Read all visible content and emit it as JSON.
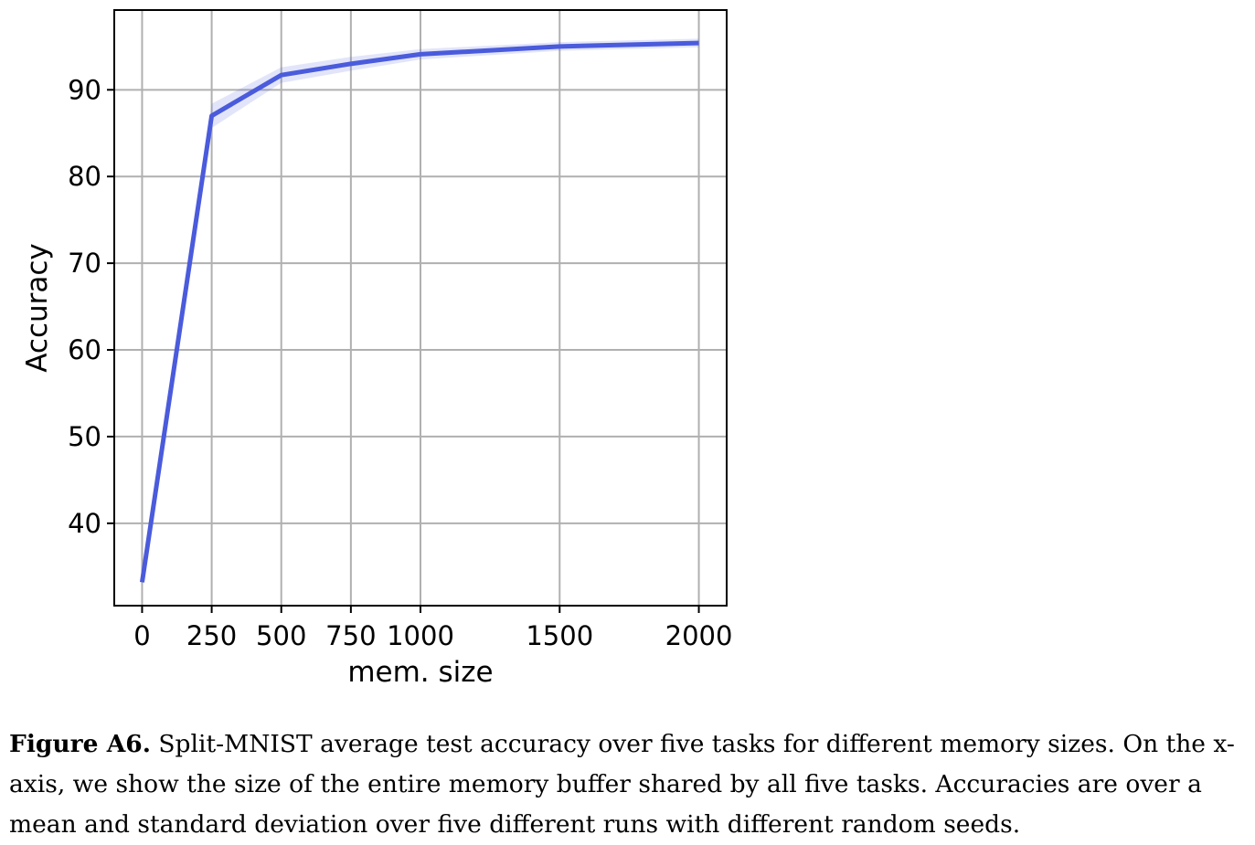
{
  "chart_data": {
    "type": "line",
    "xlabel": "mem. size",
    "ylabel": "Accuracy",
    "xlim": [
      -100,
      2100
    ],
    "ylim": [
      30.5,
      99.2
    ],
    "xticks": [
      0,
      250,
      500,
      750,
      1000,
      1500,
      2000
    ],
    "yticks": [
      40,
      50,
      60,
      70,
      80,
      90
    ],
    "grid": true,
    "series": [
      {
        "x": [
          0,
          250,
          500,
          750,
          1000,
          1500,
          2000
        ],
        "y": [
          33.2,
          87.0,
          91.7,
          93.0,
          94.1,
          95.0,
          95.4
        ],
        "std": [
          0.4,
          1.4,
          0.9,
          0.8,
          0.6,
          0.5,
          0.5
        ],
        "color": "#4a5bdc",
        "band_color": "#4a5bdc"
      }
    ]
  },
  "caption": {
    "label": "Figure A6.",
    "text": "Split-MNIST average test accuracy over five tasks for different memory sizes. On the x-axis, we show the size of the entire memory buffer shared by all five tasks. Accuracies are over a mean and standard deviation over five different runs with different random seeds."
  }
}
